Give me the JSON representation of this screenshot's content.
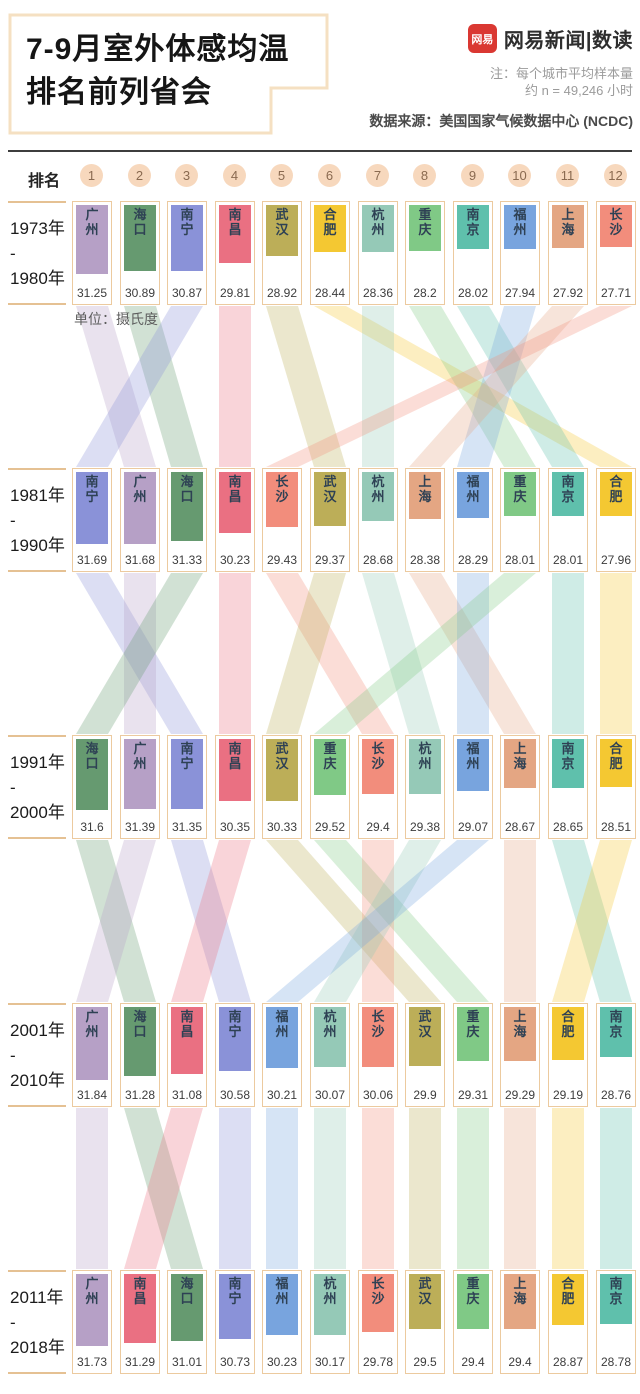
{
  "header": {
    "title_line1": "7-9月室外体感均温",
    "title_line2": "排名前列省会",
    "logo_badge": "网易",
    "logo_text": "网易新闻|数读",
    "note_line1": "注：每个城市平均样本量",
    "note_line2": "约 n = 49,246 小时",
    "source": "数据来源：美国国家气候数据中心 (NCDC)"
  },
  "rank_header": {
    "label": "排名",
    "ranks": [
      "1",
      "2",
      "3",
      "4",
      "5",
      "6",
      "7",
      "8",
      "9",
      "10",
      "11",
      "12"
    ]
  },
  "unit_label": "单位：摄氏度",
  "labels": {
    "period_separator": "-"
  },
  "colors": {
    "cell_border": "#ecca9f",
    "rank_circle_bg": "#f7d8bd",
    "rank_circle_text": "#8a6a50",
    "city_name_text": "#2e4154",
    "ribbon_opacity": 0.3,
    "cities": {
      "广州": "#b6a0c6",
      "海口": "#669a70",
      "南宁": "#8a92d8",
      "南昌": "#ea7082",
      "武汉": "#bcae58",
      "合肥": "#f4c832",
      "杭州": "#95c9b7",
      "重庆": "#80c986",
      "南京": "#5fc0ac",
      "福州": "#78a4de",
      "上海": "#e4a683",
      "长沙": "#f28d7c"
    }
  },
  "chart_data": {
    "type": "bar",
    "variant": "ranked-bump-columns",
    "title": "7-9月室外体感均温排名前列省会",
    "unit": "摄氏度",
    "note": "每个城市平均样本量约 n = 49,246 小时",
    "source": "美国国家气候数据中心 (NCDC)",
    "legend_position": "none",
    "ranks": [
      1,
      2,
      3,
      4,
      5,
      6,
      7,
      8,
      9,
      10,
      11,
      12
    ],
    "value_range_hint": [
      27.71,
      31.84
    ],
    "periods": [
      {
        "start": "1973年",
        "end": "1980年",
        "entries": [
          {
            "city": "广州",
            "value": 31.25
          },
          {
            "city": "海口",
            "value": 30.89
          },
          {
            "city": "南宁",
            "value": 30.87
          },
          {
            "city": "南昌",
            "value": 29.81
          },
          {
            "city": "武汉",
            "value": 28.92
          },
          {
            "city": "合肥",
            "value": 28.44
          },
          {
            "city": "杭州",
            "value": 28.36
          },
          {
            "city": "重庆",
            "value": 28.2
          },
          {
            "city": "南京",
            "value": 28.02
          },
          {
            "city": "福州",
            "value": 27.94
          },
          {
            "city": "上海",
            "value": 27.92
          },
          {
            "city": "长沙",
            "value": 27.71
          }
        ]
      },
      {
        "start": "1981年",
        "end": "1990年",
        "entries": [
          {
            "city": "南宁",
            "value": 31.69
          },
          {
            "city": "广州",
            "value": 31.68
          },
          {
            "city": "海口",
            "value": 31.33
          },
          {
            "city": "南昌",
            "value": 30.23
          },
          {
            "city": "长沙",
            "value": 29.43
          },
          {
            "city": "武汉",
            "value": 29.37
          },
          {
            "city": "杭州",
            "value": 28.68
          },
          {
            "city": "上海",
            "value": 28.38
          },
          {
            "city": "福州",
            "value": 28.29
          },
          {
            "city": "重庆",
            "value": 28.01
          },
          {
            "city": "南京",
            "value": 28.01
          },
          {
            "city": "合肥",
            "value": 27.96
          }
        ]
      },
      {
        "start": "1991年",
        "end": "2000年",
        "entries": [
          {
            "city": "海口",
            "value": 31.6
          },
          {
            "city": "广州",
            "value": 31.39
          },
          {
            "city": "南宁",
            "value": 31.35
          },
          {
            "city": "南昌",
            "value": 30.35
          },
          {
            "city": "武汉",
            "value": 30.33
          },
          {
            "city": "重庆",
            "value": 29.52
          },
          {
            "city": "长沙",
            "value": 29.4
          },
          {
            "city": "杭州",
            "value": 29.38
          },
          {
            "city": "福州",
            "value": 29.07
          },
          {
            "city": "上海",
            "value": 28.67
          },
          {
            "city": "南京",
            "value": 28.65
          },
          {
            "city": "合肥",
            "value": 28.51
          }
        ]
      },
      {
        "start": "2001年",
        "end": "2010年",
        "entries": [
          {
            "city": "广州",
            "value": 31.84
          },
          {
            "city": "海口",
            "value": 31.28
          },
          {
            "city": "南昌",
            "value": 31.08
          },
          {
            "city": "南宁",
            "value": 30.58
          },
          {
            "city": "福州",
            "value": 30.21
          },
          {
            "city": "杭州",
            "value": 30.07
          },
          {
            "city": "长沙",
            "value": 30.06
          },
          {
            "city": "武汉",
            "value": 29.9
          },
          {
            "city": "重庆",
            "value": 29.31
          },
          {
            "city": "上海",
            "value": 29.29
          },
          {
            "city": "合肥",
            "value": 29.19
          },
          {
            "city": "南京",
            "value": 28.76
          }
        ]
      },
      {
        "start": "2011年",
        "end": "2018年",
        "entries": [
          {
            "city": "广州",
            "value": 31.73
          },
          {
            "city": "南昌",
            "value": 31.29
          },
          {
            "city": "海口",
            "value": 31.01
          },
          {
            "city": "南宁",
            "value": 30.73
          },
          {
            "city": "福州",
            "value": 30.23
          },
          {
            "city": "杭州",
            "value": 30.17
          },
          {
            "city": "长沙",
            "value": 29.78
          },
          {
            "city": "武汉",
            "value": 29.5
          },
          {
            "city": "重庆",
            "value": 29.4
          },
          {
            "city": "上海",
            "value": 29.4
          },
          {
            "city": "合肥",
            "value": 28.87
          },
          {
            "city": "南京",
            "value": 28.78
          }
        ]
      }
    ]
  }
}
